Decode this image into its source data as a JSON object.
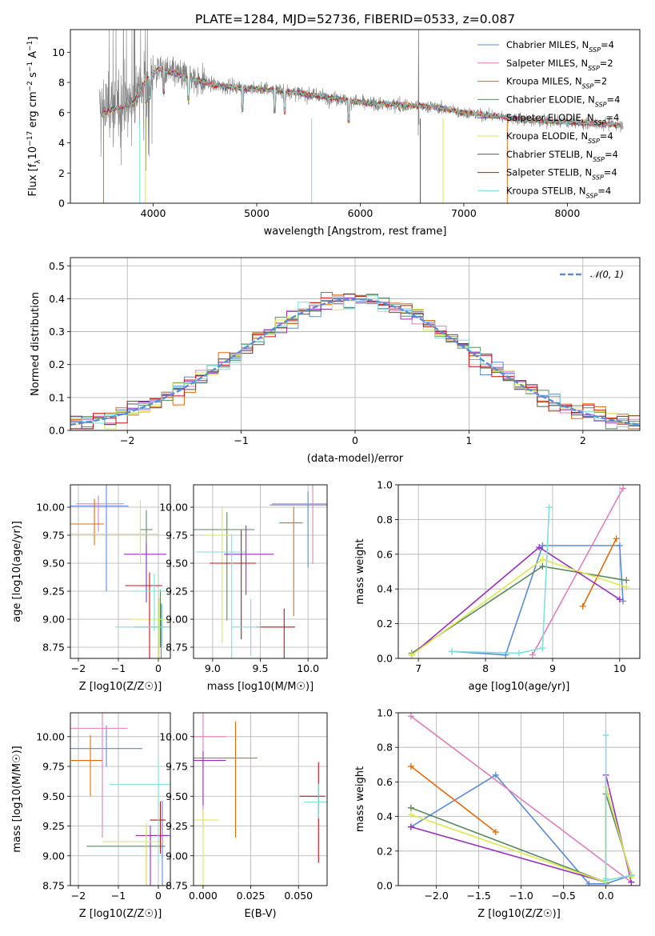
{
  "colors": {
    "Chabrier MILES": "#5b8bd8",
    "Salpeter MILES": "#e07fbd",
    "Kroupa MILES": "#e06c10",
    "Chabrier ELODIE": "#5a8a5c",
    "Salpeter ELODIE": "#9a2fbf",
    "Kroupa ELODIE": "#d9ea4e",
    "Chabrier STELIB": "#555555",
    "Salpeter STELIB": "#c41414",
    "Kroupa STELIB": "#7fdede",
    "data": "#808080",
    "normal": "#5b8bd8"
  },
  "chart_data": [
    {
      "type": "line",
      "title": "PLATE=1284, MJD=52736, FIBERID=0533, z=0.087",
      "xlabel": "wavelength [Angstrom, rest frame]",
      "ylabel": "Flux [f_λ 10^-17 erg cm^-2 s^-1 A^-1]",
      "xlim": [
        3200,
        8700
      ],
      "ylim": [
        0,
        11.5
      ],
      "xticks": [
        4000,
        5000,
        6000,
        7000,
        8000
      ],
      "yticks": [
        0,
        2,
        4,
        6,
        8,
        10
      ],
      "legend_position": "top-right",
      "legend": [
        {
          "name": "Chabrier MILES",
          "n_ssp": "4"
        },
        {
          "name": "Salpeter MILES",
          "n_ssp": "2"
        },
        {
          "name": "Kroupa MILES",
          "n_ssp": "2"
        },
        {
          "name": "Chabrier ELODIE",
          "n_ssp": "4"
        },
        {
          "name": "Salpeter ELODIE",
          "n_ssp": "4"
        },
        {
          "name": "Kroupa ELODIE",
          "n_ssp": "4"
        },
        {
          "name": "Chabrier STELIB",
          "n_ssp": "4"
        },
        {
          "name": "Salpeter STELIB",
          "n_ssp": "4"
        },
        {
          "name": "Kroupa STELIB",
          "n_ssp": "4"
        }
      ],
      "continuum_profile": {
        "x": [
          3500,
          3650,
          3800,
          3950,
          4050,
          4300,
          4600,
          4900,
          5200,
          5500,
          5800,
          6100,
          6400,
          6700,
          7000,
          7300,
          7600,
          7900,
          8200,
          8500
        ],
        "y": [
          6.2,
          6.6,
          6.9,
          8.3,
          8.9,
          8.4,
          7.8,
          7.6,
          7.5,
          7.2,
          6.9,
          6.6,
          6.5,
          6.4,
          6.0,
          5.8,
          5.5,
          5.4,
          5.3,
          5.2
        ]
      },
      "grid": false
    },
    {
      "type": "histogram",
      "xlabel": "(data-model)/error",
      "ylabel": "Normed distribution",
      "xlim": [
        -2.5,
        2.5
      ],
      "ylim": [
        0,
        0.525
      ],
      "xticks": [
        -2,
        -1,
        0,
        1,
        2
      ],
      "yticks": [
        0.0,
        0.1,
        0.2,
        0.3,
        0.4,
        0.5
      ],
      "legend_position": "top-right",
      "legend": [
        {
          "name": "𝒩(0, 1)"
        }
      ],
      "bins": {
        "start": -2.5,
        "width": 0.1,
        "count": 50
      },
      "grid": true
    },
    {
      "type": "scatter",
      "xlabel": "Z [log10(Z/Z☉)]",
      "ylabel": "age  [log10(age/yr)]",
      "xlim": [
        -2.2,
        0.3
      ],
      "ylim": [
        8.65,
        10.2
      ],
      "xticks": [
        -2,
        -1,
        0
      ],
      "yticks": [
        8.75,
        9.0,
        9.25,
        9.5,
        9.75,
        10.0
      ],
      "series": [
        {
          "name": "Chabrier MILES",
          "points": [
            [
              -1.3,
              10.01
            ],
            [
              0.07,
              8.93
            ]
          ]
        },
        {
          "name": "Salpeter MILES",
          "points": [
            [
              -1.5,
              10.03
            ]
          ]
        },
        {
          "name": "Kroupa MILES",
          "points": [
            [
              -1.6,
              9.85
            ]
          ]
        },
        {
          "name": "Chabrier ELODIE",
          "points": [
            [
              -0.3,
              9.8
            ],
            [
              0.05,
              9.0
            ]
          ]
        },
        {
          "name": "Salpeter ELODIE",
          "points": [
            [
              -0.3,
              9.58
            ]
          ]
        },
        {
          "name": "Kroupa ELODIE",
          "points": [
            [
              -0.45,
              9.76
            ],
            [
              0.02,
              9.0
            ]
          ]
        },
        {
          "name": "Salpeter STELIB",
          "points": [
            [
              -0.22,
              9.3
            ]
          ]
        },
        {
          "name": "Kroupa STELIB",
          "points": [
            [
              -0.1,
              9.25
            ],
            [
              0.1,
              8.93
            ]
          ]
        }
      ],
      "grid": true
    },
    {
      "type": "scatter",
      "xlabel": "mass [log10(M/M☉)]",
      "ylabel": "",
      "xlim": [
        8.8,
        10.2
      ],
      "ylim": [
        8.65,
        10.2
      ],
      "xticks": [
        9.0,
        9.5,
        10.0
      ],
      "yticks": [
        8.75,
        9.0,
        9.25,
        9.5,
        9.75,
        10.0
      ],
      "series": [
        {
          "name": "Chabrier MILES",
          "points": [
            [
              10.0,
              10.02
            ]
          ]
        },
        {
          "name": "Salpeter MILES",
          "points": [
            [
              10.05,
              10.03
            ]
          ]
        },
        {
          "name": "Kroupa MILES",
          "points": [
            [
              9.85,
              9.86
            ]
          ]
        },
        {
          "name": "Chabrier ELODIE",
          "points": [
            [
              9.15,
              9.8
            ]
          ]
        },
        {
          "name": "Salpeter ELODIE",
          "points": [
            [
              9.35,
              9.58
            ]
          ]
        },
        {
          "name": "Kroupa ELODIE",
          "points": [
            [
              9.1,
              9.75
            ]
          ]
        },
        {
          "name": "Salpeter STELIB",
          "points": [
            [
              9.3,
              9.5
            ],
            [
              9.75,
              8.93
            ]
          ]
        },
        {
          "name": "Kroupa STELIB",
          "points": [
            [
              9.2,
              9.6
            ],
            [
              9.4,
              8.93
            ]
          ]
        }
      ],
      "grid": true
    },
    {
      "type": "line",
      "xlabel": "age  [log10(age/yr)]",
      "ylabel": "mass weight",
      "xlim": [
        6.7,
        10.3
      ],
      "ylim": [
        0,
        1.0
      ],
      "xticks": [
        7,
        8,
        9,
        10
      ],
      "yticks": [
        0.0,
        0.2,
        0.4,
        0.6,
        0.8,
        1.0
      ],
      "series": [
        {
          "name": "Chabrier MILES",
          "points": [
            [
              7.5,
              0.04
            ],
            [
              8.3,
              0.02
            ],
            [
              8.85,
              0.65
            ],
            [
              10.0,
              0.65
            ],
            [
              10.05,
              0.33
            ]
          ]
        },
        {
          "name": "Salpeter MILES",
          "points": [
            [
              8.7,
              0.02
            ],
            [
              10.05,
              0.98
            ]
          ]
        },
        {
          "name": "Kroupa MILES",
          "points": [
            [
              9.45,
              0.3
            ],
            [
              9.95,
              0.69
            ]
          ]
        },
        {
          "name": "Chabrier ELODIE",
          "points": [
            [
              6.9,
              0.03
            ],
            [
              8.85,
              0.53
            ],
            [
              10.1,
              0.45
            ]
          ]
        },
        {
          "name": "Salpeter ELODIE",
          "points": [
            [
              6.9,
              0.02
            ],
            [
              8.8,
              0.64
            ],
            [
              10.0,
              0.34
            ]
          ]
        },
        {
          "name": "Kroupa ELODIE",
          "points": [
            [
              6.9,
              0.02
            ],
            [
              8.85,
              0.57
            ],
            [
              10.1,
              0.41
            ]
          ]
        },
        {
          "name": "Kroupa STELIB",
          "points": [
            [
              7.5,
              0.04
            ],
            [
              8.5,
              0.03
            ],
            [
              8.85,
              0.06
            ],
            [
              8.95,
              0.87
            ]
          ]
        }
      ],
      "grid": true
    },
    {
      "type": "scatter",
      "xlabel": "Z [log10(Z/Z☉)]",
      "ylabel": "mass [log10(M/M☉)]",
      "xlim": [
        -2.2,
        0.3
      ],
      "ylim": [
        8.75,
        10.2
      ],
      "xticks": [
        -2,
        -1,
        0
      ],
      "yticks": [
        8.75,
        9.0,
        9.25,
        9.5,
        9.75,
        10.0
      ],
      "series": [
        {
          "name": "Chabrier MILES",
          "points": [
            [
              -1.3,
              9.9
            ],
            [
              0.1,
              9.17
            ]
          ]
        },
        {
          "name": "Salpeter MILES",
          "points": [
            [
              -1.4,
              10.07
            ]
          ]
        },
        {
          "name": "Kroupa MILES",
          "points": [
            [
              -1.7,
              9.8
            ]
          ]
        },
        {
          "name": "Chabrier ELODIE",
          "points": [
            [
              -0.3,
              9.08
            ]
          ]
        },
        {
          "name": "Salpeter ELODIE",
          "points": [
            [
              -0.2,
              9.17
            ]
          ]
        },
        {
          "name": "Kroupa ELODIE",
          "points": [
            [
              -0.3,
              9.12
            ]
          ]
        },
        {
          "name": "Salpeter STELIB",
          "points": [
            [
              0.05,
              9.3
            ]
          ]
        },
        {
          "name": "Kroupa STELIB",
          "points": [
            [
              0.0,
              9.6
            ]
          ]
        }
      ],
      "grid": true
    },
    {
      "type": "scatter",
      "xlabel": "E(B-V)",
      "ylabel": "",
      "xlim": [
        -0.005,
        0.065
      ],
      "ylim": [
        8.75,
        10.2
      ],
      "xticks": [
        0.0,
        0.025,
        0.05
      ],
      "yticks": [
        8.75,
        9.0,
        9.25,
        9.5,
        9.75,
        10.0
      ],
      "series": [
        {
          "name": "Salpeter MILES",
          "points": [
            [
              0.0,
              10.0
            ]
          ]
        },
        {
          "name": "Kroupa MILES",
          "points": [
            [
              0.017,
              9.82
            ]
          ]
        },
        {
          "name": "Kroupa ELODIE",
          "points": [
            [
              0.0,
              9.3
            ]
          ]
        },
        {
          "name": "Salpeter ELODIE",
          "points": [
            [
              0.0,
              9.8
            ]
          ]
        },
        {
          "name": "Salpeter STELIB",
          "points": [
            [
              0.0605,
              9.5
            ]
          ]
        },
        {
          "name": "Kroupa STELIB",
          "points": [
            [
              0.0605,
              9.45
            ]
          ]
        }
      ],
      "grid": true
    },
    {
      "type": "line",
      "xlabel": "Z [log10(Z/Z☉)]",
      "ylabel": "mass weight",
      "xlim": [
        -2.45,
        0.4
      ],
      "ylim": [
        0,
        1.0
      ],
      "xticks": [
        -2.0,
        -1.5,
        -1.0,
        -0.5,
        0.0
      ],
      "yticks": [
        0.0,
        0.2,
        0.4,
        0.6,
        0.8,
        1.0
      ],
      "series": [
        {
          "name": "Chabrier MILES",
          "points": [
            [
              -2.3,
              0.34
            ],
            [
              -1.3,
              0.64
            ],
            [
              -0.2,
              0.01
            ],
            [
              0.0,
              0.01
            ],
            [
              0.3,
              0.06
            ]
          ]
        },
        {
          "name": "Salpeter MILES",
          "points": [
            [
              -2.3,
              0.98
            ],
            [
              0.3,
              0.02
            ]
          ]
        },
        {
          "name": "Kroupa MILES",
          "points": [
            [
              -2.3,
              0.69
            ],
            [
              -1.3,
              0.31
            ]
          ]
        },
        {
          "name": "Chabrier ELODIE",
          "points": [
            [
              -2.3,
              0.45
            ],
            [
              0.0,
              0.02
            ],
            [
              0.0,
              0.53
            ],
            [
              0.3,
              0.06
            ]
          ]
        },
        {
          "name": "Salpeter ELODIE",
          "points": [
            [
              -2.3,
              0.34
            ],
            [
              0.0,
              0.02
            ],
            [
              0.0,
              0.64
            ],
            [
              0.3,
              0.02
            ]
          ]
        },
        {
          "name": "Kroupa ELODIE",
          "points": [
            [
              -2.3,
              0.41
            ],
            [
              0.0,
              0.02
            ],
            [
              0.0,
              0.57
            ],
            [
              0.3,
              0.05
            ]
          ]
        },
        {
          "name": "Kroupa STELIB",
          "points": [
            [
              0.0,
              0.04
            ],
            [
              0.0,
              0.87
            ],
            [
              0.0,
              0.03
            ],
            [
              0.3,
              0.06
            ]
          ]
        }
      ],
      "grid": true
    }
  ]
}
